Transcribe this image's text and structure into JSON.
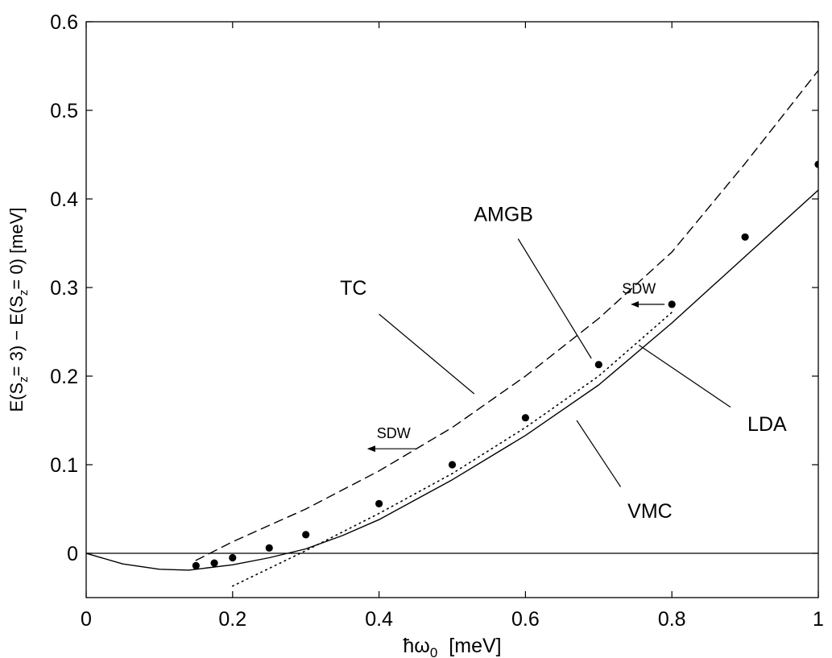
{
  "chart_data": {
    "type": "line",
    "title": "",
    "xlabel": {
      "main": "ħω",
      "sub": "0",
      "unit": "[meV]"
    },
    "ylabel": {
      "parts": [
        "E(S",
        "z",
        "= 3) − E(S",
        "z",
        "= 0)  [meV]"
      ]
    },
    "xlim": [
      0,
      1
    ],
    "ylim": [
      -0.05,
      0.6
    ],
    "xticks": [
      0,
      0.2,
      0.4,
      0.6,
      0.8,
      1
    ],
    "xtick_labels": [
      "0",
      "0.2",
      "0.4",
      "0.6",
      "0.8",
      "1"
    ],
    "yticks": [
      0,
      0.1,
      0.2,
      0.3,
      0.4,
      0.5,
      0.6
    ],
    "ytick_labels": [
      "0",
      "0.1",
      "0.2",
      "0.3",
      "0.4",
      "0.5",
      "0.6"
    ],
    "grid": false,
    "zero_line": true,
    "series": [
      {
        "name": "VMC",
        "style": "solid",
        "color": "#000000",
        "x": [
          0,
          0.05,
          0.1,
          0.14,
          0.2,
          0.25,
          0.3,
          0.35,
          0.4,
          0.5,
          0.6,
          0.7,
          0.8,
          0.9,
          1.0
        ],
        "y": [
          0,
          -0.012,
          -0.018,
          -0.019,
          -0.013,
          -0.005,
          0.005,
          0.02,
          0.038,
          0.083,
          0.133,
          0.19,
          0.26,
          0.335,
          0.41
        ]
      },
      {
        "name": "TC",
        "style": "dashed",
        "color": "#000000",
        "x": [
          0.15,
          0.2,
          0.3,
          0.4,
          0.5,
          0.6,
          0.7,
          0.8,
          0.9,
          1.0
        ],
        "y": [
          -0.008,
          0.013,
          0.05,
          0.093,
          0.142,
          0.2,
          0.265,
          0.34,
          0.44,
          0.545
        ]
      },
      {
        "name": "LDA",
        "style": "dotted",
        "color": "#000000",
        "x": [
          0.2,
          0.3,
          0.4,
          0.5,
          0.6,
          0.7,
          0.8
        ],
        "y": [
          -0.037,
          0.003,
          0.045,
          0.09,
          0.142,
          0.2,
          0.272
        ]
      },
      {
        "name": "AMGB",
        "style": "markers",
        "color": "#000000",
        "x": [
          0.15,
          0.175,
          0.2,
          0.25,
          0.3,
          0.4,
          0.5,
          0.6,
          0.7,
          0.8,
          0.9,
          1.0
        ],
        "y": [
          -0.014,
          -0.011,
          -0.005,
          0.006,
          0.021,
          0.056,
          0.1,
          0.153,
          0.213,
          0.281,
          0.357,
          0.439
        ]
      }
    ],
    "annotations": [
      {
        "text": "TC",
        "x": 0.365,
        "y": 0.292,
        "size": "large",
        "line_from": [
          0.4,
          0.27
        ],
        "line_to": [
          0.53,
          0.18
        ]
      },
      {
        "text": "AMGB",
        "x": 0.57,
        "y": 0.375,
        "size": "large",
        "line_from": [
          0.59,
          0.355
        ],
        "line_to": [
          0.69,
          0.22
        ]
      },
      {
        "text": "LDA",
        "x": 0.93,
        "y": 0.138,
        "size": "large",
        "line_from": [
          0.88,
          0.165
        ],
        "line_to": [
          0.755,
          0.235
        ]
      },
      {
        "text": "VMC",
        "x": 0.77,
        "y": 0.04,
        "size": "large",
        "line_from": [
          0.73,
          0.075
        ],
        "line_to": [
          0.67,
          0.15
        ]
      },
      {
        "text": "SDW",
        "x": 0.42,
        "y": 0.13,
        "size": "small",
        "arrow_from": [
          0.45,
          0.118
        ],
        "arrow_to": [
          0.385,
          0.118
        ]
      },
      {
        "text": "SDW",
        "x": 0.755,
        "y": 0.293,
        "size": "small",
        "arrow_from": [
          0.79,
          0.281
        ],
        "arrow_to": [
          0.745,
          0.281
        ]
      }
    ]
  }
}
